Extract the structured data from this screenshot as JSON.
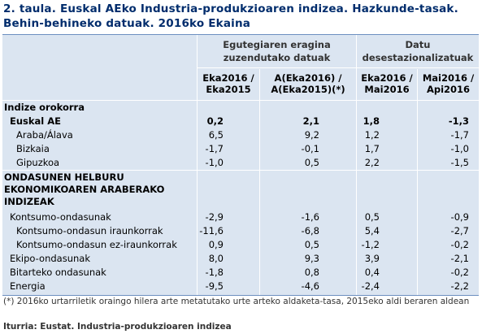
{
  "title": "2. taula. Euskal AEko Industria-produkzioaren indizea. Hazkunde-tasak. Behin-behineko datuak. 2016ko Ekaina",
  "groups": {
    "calendar": [
      "Egutegiaren eragina",
      "zuzendutako datuak"
    ],
    "seasonal": [
      "Datu",
      "desestazionalizatuak"
    ]
  },
  "columns": [
    [
      "Eka2016 /",
      "Eka2015"
    ],
    [
      "A(Eka2016) /",
      "A(Eka2015)(*)"
    ],
    [
      "Eka2016 /",
      "Mai2016"
    ],
    [
      "Mai2016 /",
      "Api2016"
    ]
  ],
  "rows": [
    {
      "label": "Indize orokorra",
      "values": [
        "",
        "",
        "",
        ""
      ]
    },
    {
      "label": "Euskal AE",
      "values": [
        "0,2",
        "2,1",
        "1,8",
        "-1,3"
      ]
    },
    {
      "label": "Araba/Álava",
      "values": [
        "6,5",
        "9,2",
        "1,2",
        "-1,7"
      ]
    },
    {
      "label": "Bizkaia",
      "values": [
        "-1,7",
        "-0,1",
        "1,7",
        "-1,0"
      ]
    },
    {
      "label": "Gipuzkoa",
      "values": [
        "-1,0",
        "0,5",
        "2,2",
        "-1,5"
      ]
    },
    {
      "label": "ONDASUNEN HELBURU",
      "values": [
        "",
        "",
        "",
        ""
      ]
    },
    {
      "label": "EKONOMIKOAREN ARABERAKO",
      "values": [
        "",
        "",
        "",
        ""
      ]
    },
    {
      "label": "INDIZEAK",
      "values": [
        "",
        "",
        "",
        ""
      ]
    },
    {
      "label": "Kontsumo-ondasunak",
      "values": [
        "-2,9",
        "-1,6",
        "0,5",
        "-0,9"
      ]
    },
    {
      "label": "Kontsumo-ondasun iraunkorrak",
      "values": [
        "-11,6",
        "-6,8",
        "5,4",
        "-2,7"
      ]
    },
    {
      "label": "Kontsumo-ondasun ez-iraunkorrak",
      "values": [
        "0,9",
        "0,5",
        "-1,2",
        "-0,2"
      ]
    },
    {
      "label": "Ekipo-ondasunak",
      "values": [
        "8,0",
        "9,3",
        "3,9",
        "-2,1"
      ]
    },
    {
      "label": "Bitarteko ondasunak",
      "values": [
        "-1,8",
        "0,8",
        "0,4",
        "-0,2"
      ]
    },
    {
      "label": "Energia",
      "values": [
        "-9,5",
        "-4,6",
        "-2,4",
        "-2,2"
      ]
    }
  ],
  "footnote": "(*) 2016ko urtarriletik oraingo hilera arte metatutako urte arteko aldaketa-tasa, 2015eko aldi beraren aldean",
  "source": "Iturria: Eustat. Industria-produkzioaren indizea"
}
